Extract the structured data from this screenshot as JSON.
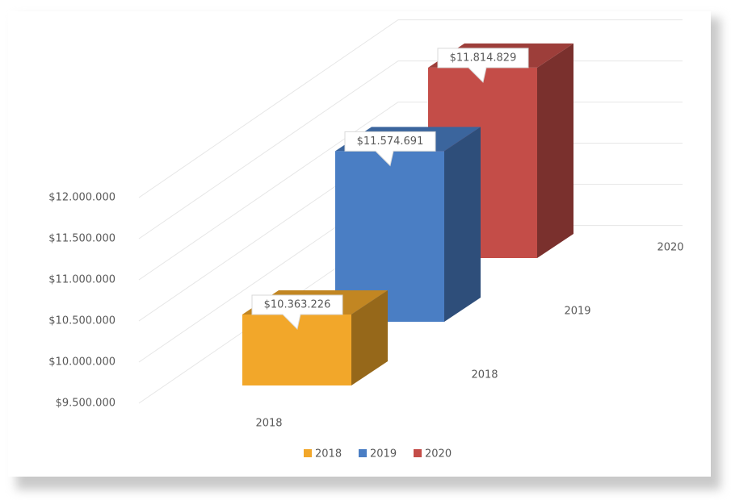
{
  "chart_data": {
    "type": "bar3d",
    "categories": [
      "2018"
    ],
    "series": [
      {
        "name": "2018",
        "color": "#f2a72a",
        "values": [
          10363226
        ],
        "value_labels": [
          "$10.363.226"
        ]
      },
      {
        "name": "2019",
        "color": "#4a7ec4",
        "values": [
          11574691
        ],
        "value_labels": [
          "$11.574.691"
        ]
      },
      {
        "name": "2020",
        "color": "#c44d48",
        "values": [
          11814829
        ],
        "value_labels": [
          "$11.814.829"
        ]
      }
    ],
    "ylim": [
      9500000,
      12000000
    ],
    "yticks": [
      {
        "value": 9500000,
        "label": "$9.500.000"
      },
      {
        "value": 10000000,
        "label": "$10.000.000"
      },
      {
        "value": 10500000,
        "label": "$10.500.000"
      },
      {
        "value": 11000000,
        "label": "$11.000.000"
      },
      {
        "value": 11500000,
        "label": "$11.500.000"
      },
      {
        "value": 12000000,
        "label": "$12.000.000"
      }
    ],
    "grid": true,
    "legend": "bottom"
  }
}
